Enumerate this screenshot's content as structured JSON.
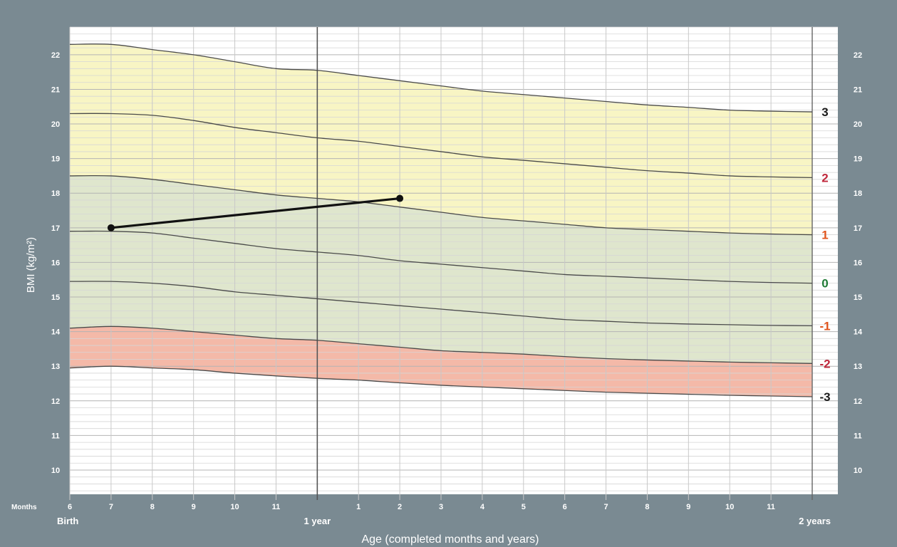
{
  "chart_data": {
    "type": "line",
    "title": "",
    "xlabel": "Age (completed months and years)",
    "ylabel": "BMI (kg/m²)",
    "ylim": [
      9.3,
      22.8
    ],
    "xlim": [
      6,
      24
    ],
    "months_label": "Months",
    "y_ticks": [
      10,
      11,
      12,
      13,
      14,
      15,
      16,
      17,
      18,
      19,
      20,
      21,
      22
    ],
    "x_ticks": [
      {
        "age": 6,
        "label": "6"
      },
      {
        "age": 7,
        "label": "7"
      },
      {
        "age": 8,
        "label": "8"
      },
      {
        "age": 9,
        "label": "9"
      },
      {
        "age": 10,
        "label": "10"
      },
      {
        "age": 11,
        "label": "11"
      },
      {
        "age": 13,
        "label": "1"
      },
      {
        "age": 14,
        "label": "2"
      },
      {
        "age": 15,
        "label": "3"
      },
      {
        "age": 16,
        "label": "4"
      },
      {
        "age": 17,
        "label": "5"
      },
      {
        "age": 18,
        "label": "6"
      },
      {
        "age": 19,
        "label": "7"
      },
      {
        "age": 20,
        "label": "8"
      },
      {
        "age": 21,
        "label": "9"
      },
      {
        "age": 22,
        "label": "10"
      },
      {
        "age": 23,
        "label": "11"
      }
    ],
    "x_major_labels": [
      {
        "age": 6,
        "label": "Birth"
      },
      {
        "age": 12,
        "label": "1 year"
      },
      {
        "age": 24,
        "label": "2 years"
      }
    ],
    "x_ages": [
      6,
      7,
      8,
      9,
      10,
      11,
      12,
      13,
      14,
      15,
      16,
      17,
      18,
      19,
      20,
      21,
      22,
      23,
      24
    ],
    "zones": [
      {
        "from_curve": "3",
        "to_curve": "1",
        "color": "#f8f5c4"
      },
      {
        "from_curve": "1",
        "to_curve": "-2",
        "color": "#dfe6cd"
      },
      {
        "from_curve": "-2",
        "to_curve": "-3",
        "color": "#f4b9a8"
      }
    ],
    "series": [
      {
        "name": "3",
        "label_color": "#1a1a1a",
        "values": [
          22.3,
          22.3,
          22.15,
          22.0,
          21.8,
          21.6,
          21.55,
          21.4,
          21.25,
          21.1,
          20.95,
          20.85,
          20.75,
          20.65,
          20.55,
          20.48,
          20.4,
          20.37,
          20.35
        ]
      },
      {
        "name": "2",
        "label_color": "#c0283c",
        "values": [
          20.3,
          20.3,
          20.25,
          20.1,
          19.9,
          19.75,
          19.6,
          19.5,
          19.35,
          19.2,
          19.05,
          18.95,
          18.85,
          18.75,
          18.65,
          18.58,
          18.5,
          18.47,
          18.45
        ]
      },
      {
        "name": "1",
        "label_color": "#e0541c",
        "values": [
          18.5,
          18.5,
          18.4,
          18.25,
          18.1,
          17.95,
          17.85,
          17.75,
          17.6,
          17.45,
          17.3,
          17.2,
          17.1,
          17.0,
          16.95,
          16.9,
          16.85,
          16.82,
          16.8
        ]
      },
      {
        "name": "0",
        "label_color": "#1e7a34",
        "values": [
          16.9,
          16.9,
          16.85,
          16.7,
          16.55,
          16.4,
          16.3,
          16.2,
          16.05,
          15.95,
          15.85,
          15.75,
          15.65,
          15.6,
          15.55,
          15.5,
          15.45,
          15.42,
          15.4
        ]
      },
      {
        "name": "-1",
        "label_color": "#e0541c",
        "values": [
          15.45,
          15.45,
          15.4,
          15.3,
          15.15,
          15.05,
          14.95,
          14.85,
          14.75,
          14.65,
          14.55,
          14.45,
          14.35,
          14.3,
          14.25,
          14.22,
          14.2,
          14.18,
          14.17
        ]
      },
      {
        "name": "-2",
        "label_color": "#c0283c",
        "values": [
          14.1,
          14.15,
          14.1,
          14.0,
          13.9,
          13.8,
          13.75,
          13.65,
          13.55,
          13.45,
          13.4,
          13.35,
          13.28,
          13.22,
          13.18,
          13.15,
          13.12,
          13.1,
          13.08
        ]
      },
      {
        "name": "-3",
        "label_color": "#1a1a1a",
        "values": [
          12.95,
          13.0,
          12.95,
          12.9,
          12.8,
          12.72,
          12.65,
          12.6,
          12.52,
          12.45,
          12.4,
          12.35,
          12.3,
          12.25,
          12.22,
          12.19,
          12.16,
          12.14,
          12.12
        ]
      }
    ],
    "patient": {
      "points": [
        {
          "age": 7,
          "bmi": 17.0
        },
        {
          "age": 14,
          "bmi": 17.85
        }
      ]
    }
  }
}
